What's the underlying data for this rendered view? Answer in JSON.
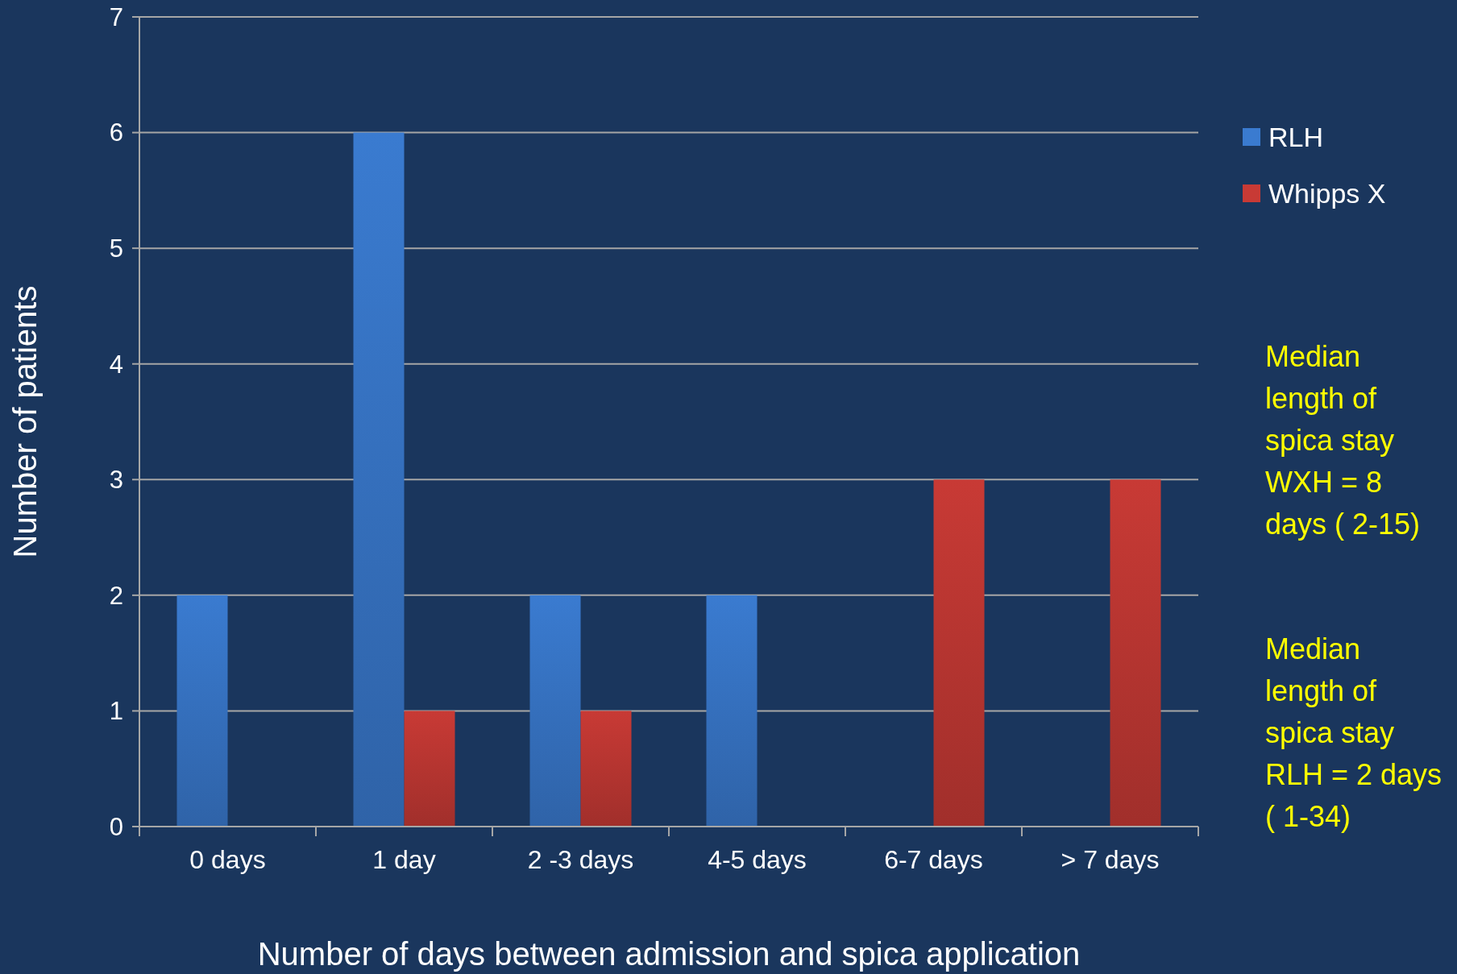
{
  "chart_data": {
    "type": "bar",
    "xlabel": "Number of days between admission and spica application",
    "ylabel": "Number of patients",
    "categories": [
      "0 days",
      "1 day",
      "2 -3 days",
      "4-5 days",
      "6-7 days",
      "> 7 days"
    ],
    "series": [
      {
        "name": "RLH",
        "color": "#3a7bd0",
        "values": [
          2,
          6,
          2,
          2,
          0,
          0
        ]
      },
      {
        "name": "Whipps X",
        "color": "#c83a35",
        "values": [
          0,
          1,
          1,
          0,
          3,
          3
        ]
      }
    ],
    "ylim": [
      0,
      7
    ],
    "yticks": [
      0,
      1,
      2,
      3,
      4,
      5,
      6,
      7
    ],
    "grid": "y",
    "legend": "right",
    "annotations": [
      "Median\nlength of\nspica stay\nWXH = 8\ndays ( 2-15)",
      "Median\nlength of\nspica stay\nRLH = 2 days\n( 1-34)"
    ]
  }
}
